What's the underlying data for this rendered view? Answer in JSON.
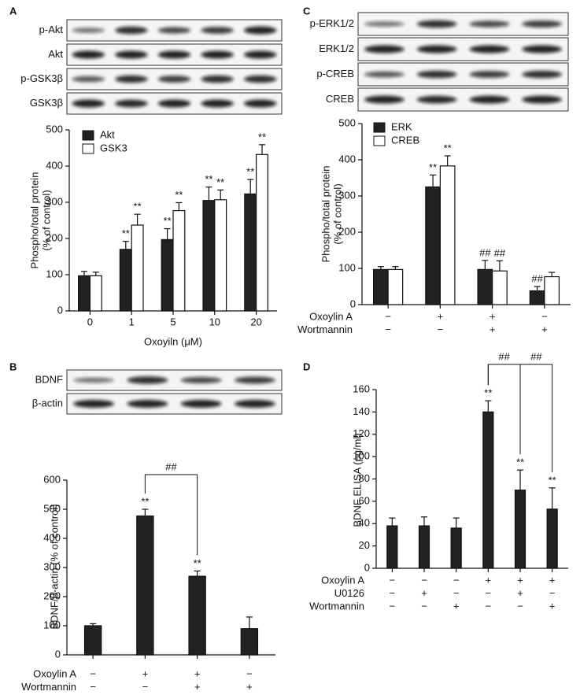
{
  "chart_data": [
    {
      "type": "bar",
      "panel": "A",
      "blots": [
        "p-Akt",
        "Akt",
        "p-GSK3β",
        "GSK3β"
      ],
      "categories": [
        "0",
        "1",
        "5",
        "10",
        "20"
      ],
      "series": [
        {
          "name": "Akt",
          "color": "#222222",
          "values": [
            97,
            170,
            197,
            305,
            323
          ],
          "errors": [
            12,
            22,
            30,
            37,
            40
          ],
          "annotations": [
            null,
            "**",
            "**",
            "**",
            "**"
          ]
        },
        {
          "name": "GSK3",
          "color": "#ffffff",
          "values": [
            97,
            237,
            277,
            307,
            432
          ],
          "errors": [
            10,
            30,
            22,
            27,
            27
          ],
          "annotations": [
            null,
            "**",
            "**",
            "**",
            "**"
          ]
        }
      ],
      "ylim": [
        0,
        500
      ],
      "yticks": [
        0,
        100,
        200,
        300,
        400,
        500
      ],
      "ylabel": [
        "Phospho/total protein",
        "(% of control)"
      ],
      "xlabel": "Oxoyiln (μM)"
    },
    {
      "type": "bar",
      "panel": "C",
      "blots": [
        "p-ERK1/2",
        "ERK1/2",
        "p-CREB",
        "CREB"
      ],
      "categories": [
        null,
        null,
        null,
        null
      ],
      "series": [
        {
          "name": "ERK",
          "color": "#222222",
          "values": [
            97,
            325,
            97,
            38
          ],
          "errors": [
            8,
            33,
            25,
            12
          ],
          "annotations": [
            null,
            "**",
            "##",
            "##"
          ]
        },
        {
          "name": "CREB",
          "color": "#ffffff",
          "values": [
            97,
            383,
            93,
            77
          ],
          "errors": [
            8,
            28,
            28,
            12
          ],
          "annotations": [
            null,
            "**",
            "##",
            null
          ]
        }
      ],
      "ylim": [
        0,
        500
      ],
      "yticks": [
        0,
        100,
        200,
        300,
        400,
        500
      ],
      "ylabel": [
        "Phospho/total protein",
        "(% of control)"
      ],
      "conditions": [
        {
          "label": "Oxoylin A",
          "values": [
            "−",
            "+",
            "+",
            "−"
          ]
        },
        {
          "label": "Wortmannin",
          "values": [
            "−",
            "−",
            "+",
            "+"
          ]
        }
      ]
    },
    {
      "type": "bar",
      "panel": "B",
      "blots": [
        "BDNF",
        "β-actin"
      ],
      "categories": [
        null,
        null,
        null,
        null
      ],
      "series": [
        {
          "color": "#222222",
          "values": [
            100,
            477,
            270,
            90
          ],
          "errors": [
            7,
            23,
            18,
            40
          ],
          "annotations": [
            null,
            "**",
            "**",
            null
          ]
        }
      ],
      "ylim": [
        0,
        600
      ],
      "yticks": [
        0,
        100,
        200,
        300,
        400,
        500,
        600
      ],
      "ylabel": [
        "BDNF/β-actin (% of control)"
      ],
      "brackets": [
        {
          "label": "##",
          "from": 1,
          "to": 2
        }
      ],
      "conditions": [
        {
          "label": "Oxoylin A",
          "values": [
            "−",
            "+",
            "+",
            "−"
          ]
        },
        {
          "label": "Wortmannin",
          "values": [
            "−",
            "−",
            "+",
            "+"
          ]
        }
      ]
    },
    {
      "type": "bar",
      "panel": "D",
      "categories": [
        null,
        null,
        null,
        null,
        null,
        null
      ],
      "series": [
        {
          "color": "#222222",
          "values": [
            38,
            38,
            36,
            140,
            70,
            53
          ],
          "errors": [
            7,
            8,
            9,
            10,
            18,
            19
          ],
          "annotations": [
            null,
            null,
            null,
            "**",
            "**",
            "**"
          ]
        }
      ],
      "ylim": [
        0,
        160
      ],
      "yticks": [
        0,
        20,
        40,
        60,
        80,
        100,
        120,
        140,
        160
      ],
      "ylabel": [
        "BDNF ELISA (pg/ml)"
      ],
      "brackets": [
        {
          "label": "##",
          "from": 3,
          "to": 4
        },
        {
          "label": "##",
          "from": 3,
          "to": 5
        }
      ],
      "conditions": [
        {
          "label": "Oxoylin A",
          "values": [
            "−",
            "−",
            "−",
            "+",
            "+",
            "+"
          ]
        },
        {
          "label": "U0126",
          "values": [
            "−",
            "+",
            "−",
            "−",
            "+",
            "−"
          ]
        },
        {
          "label": "Wortmannin",
          "values": [
            "−",
            "−",
            "+",
            "−",
            "−",
            "+"
          ]
        }
      ]
    }
  ]
}
